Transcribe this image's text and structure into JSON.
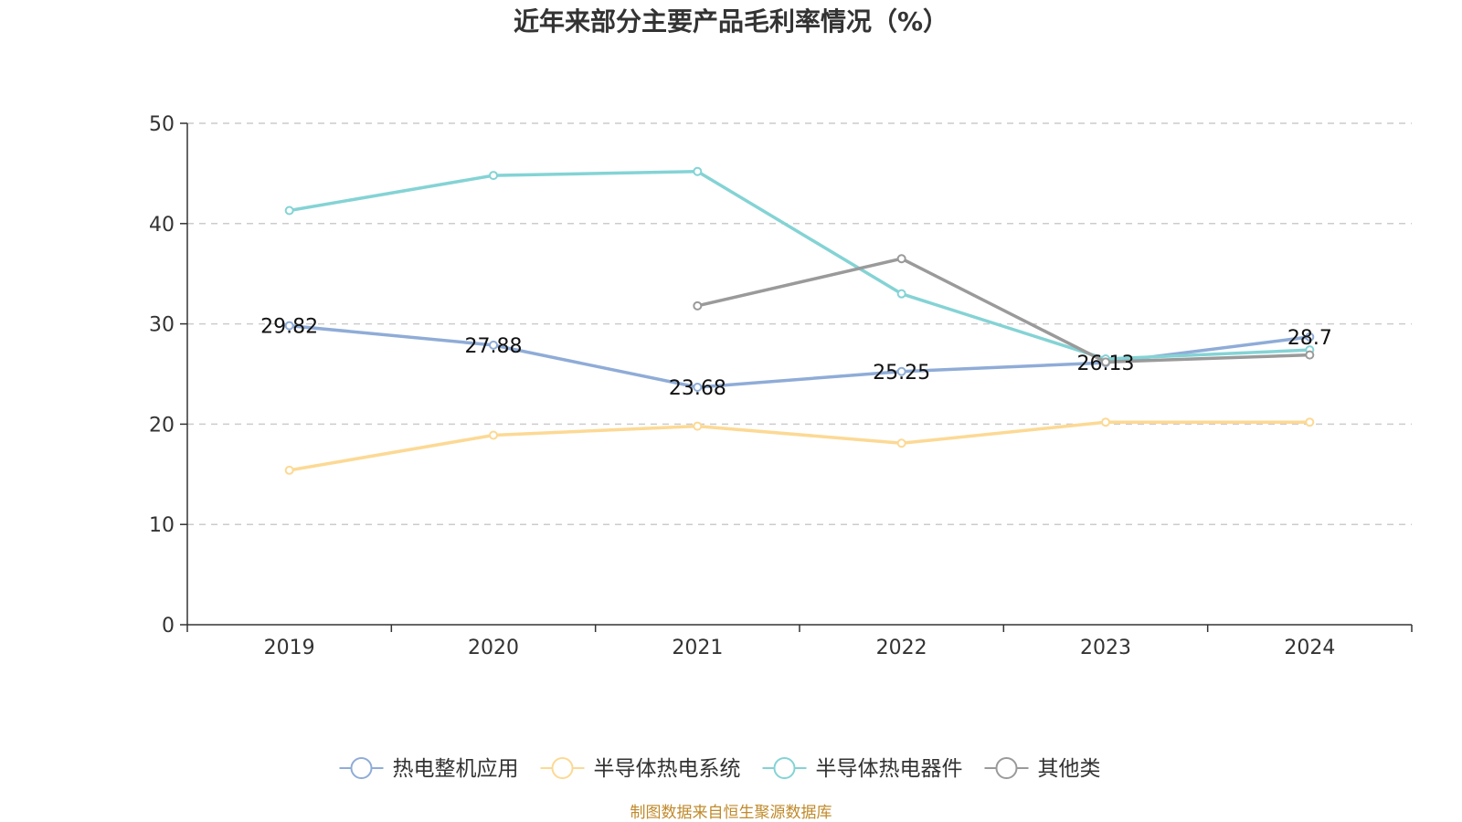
{
  "chart_data": {
    "type": "line",
    "title": "近年来部分主要产品毛利率情况（%）",
    "categories": [
      "2019",
      "2020",
      "2021",
      "2022",
      "2023",
      "2024"
    ],
    "ylim": [
      0,
      50
    ],
    "yticks": [
      0,
      10,
      20,
      30,
      40,
      50
    ],
    "grid": true,
    "legend_position": "bottom",
    "series": [
      {
        "name": "热电整机应用",
        "color": "#8facd7",
        "values": [
          29.82,
          27.88,
          23.68,
          25.25,
          26.13,
          28.7
        ],
        "labels": [
          "29.82",
          "27.88",
          "23.68",
          "25.25",
          "26.13",
          "28.7"
        ]
      },
      {
        "name": "半导体热电系统",
        "color": "#fcd994",
        "values": [
          15.4,
          18.9,
          19.8,
          18.1,
          20.2,
          20.2
        ]
      },
      {
        "name": "半导体热电器件",
        "color": "#84d3d5",
        "values": [
          41.3,
          44.8,
          45.2,
          33.0,
          26.5,
          27.4
        ]
      },
      {
        "name": "其他类",
        "color": "#9a9a9a",
        "values": [
          null,
          null,
          31.8,
          36.5,
          26.2,
          26.9
        ]
      }
    ]
  },
  "source": "制图数据来自恒生聚源数据库"
}
